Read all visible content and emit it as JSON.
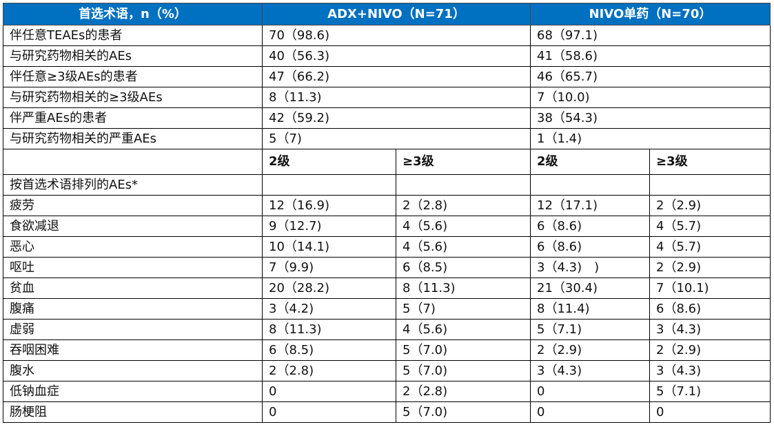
{
  "header": {
    "term": "首选术语，n（%）",
    "arm1": "ADX+NIVO（N=71）",
    "arm2": "NIVO单药（N=70）"
  },
  "summary_rows": [
    {
      "label": "伴任意TEAEs的患者",
      "arm1": "70（98.6)",
      "arm2": "68（97.1)"
    },
    {
      "label": "与研究药物相关的AEs",
      "arm1": "40（56.3)",
      "arm2": "41（58.6)"
    },
    {
      "label": "伴任意≥3级AEs的患者",
      "arm1": "47（66.2)",
      "arm2": "46（65.7)"
    },
    {
      "label": "与研究药物相关的≥3级AEs",
      "arm1": "8（11.3)",
      "arm2": "7（10.0)"
    },
    {
      "label": "伴严重AEs的患者",
      "arm1": "42（59.2)",
      "arm2": "38（54.3)"
    },
    {
      "label": "与研究药物相关的严重AEs",
      "arm1": "5（7)",
      "arm2": "1（1.4)"
    }
  ],
  "grade_header": {
    "arm1_g2": "2级",
    "arm1_g3": "≥3级",
    "arm2_g2": "2级",
    "arm2_g3": "≥3级"
  },
  "section_label": "按首选术语排列的AEs*",
  "ae_rows": [
    {
      "label": "疲劳",
      "a_g2": "12（16.9)",
      "a_g3": "2（2.8)",
      "b_g2": "12（17.1)",
      "b_g3": "2（2.9)"
    },
    {
      "label": "食欲减退",
      "a_g2": "9（12.7)",
      "a_g3": "4（5.6)",
      "b_g2": "6（8.6)",
      "b_g3": "4（5.7)"
    },
    {
      "label": "恶心",
      "a_g2": "10（14.1)",
      "a_g3": "4（5.6)",
      "b_g2": "6（8.6)",
      "b_g3": "4（5.7)"
    },
    {
      "label": "呕吐",
      "a_g2": "7（9.9)",
      "a_g3": "6（8.5)",
      "b_g2": "3（4.3)　)",
      "b_g3": "2（2.9)"
    },
    {
      "label": "贫血",
      "a_g2": "20（28.2)",
      "a_g3": "8（11.3)",
      "b_g2": "21（30.4)",
      "b_g3": "7（10.1)"
    },
    {
      "label": "腹痛",
      "a_g2": "3（4.2)",
      "a_g3": "5（7)",
      "b_g2": "8（11.4)",
      "b_g3": "6（8.6)"
    },
    {
      "label": "虚弱",
      "a_g2": "8（11.3)",
      "a_g3": "4（5.6)",
      "b_g2": "5（7.1)",
      "b_g3": "3（4.3)"
    },
    {
      "label": "吞咽困难",
      "a_g2": "6（8.5)",
      "a_g3": "5（7.0)",
      "b_g2": "2（2.9)",
      "b_g3": "2（2.9)"
    },
    {
      "label": "腹水",
      "a_g2": "2（2.8)",
      "a_g3": "5（7.0)",
      "b_g2": "3（4.3)",
      "b_g3": "3（4.3)"
    },
    {
      "label": "低钠血症",
      "a_g2": "0",
      "a_g3": "2（2.8)",
      "b_g2": "0",
      "b_g3": "5（7.1)"
    },
    {
      "label": "肠梗阻",
      "a_g2": "0",
      "a_g3": "5（7.0)",
      "b_g2": "0",
      "b_g3": "0"
    }
  ],
  "colors": {
    "header_bg": "#0070C0",
    "header_text": "#FFFFFF",
    "border": "#000000"
  }
}
